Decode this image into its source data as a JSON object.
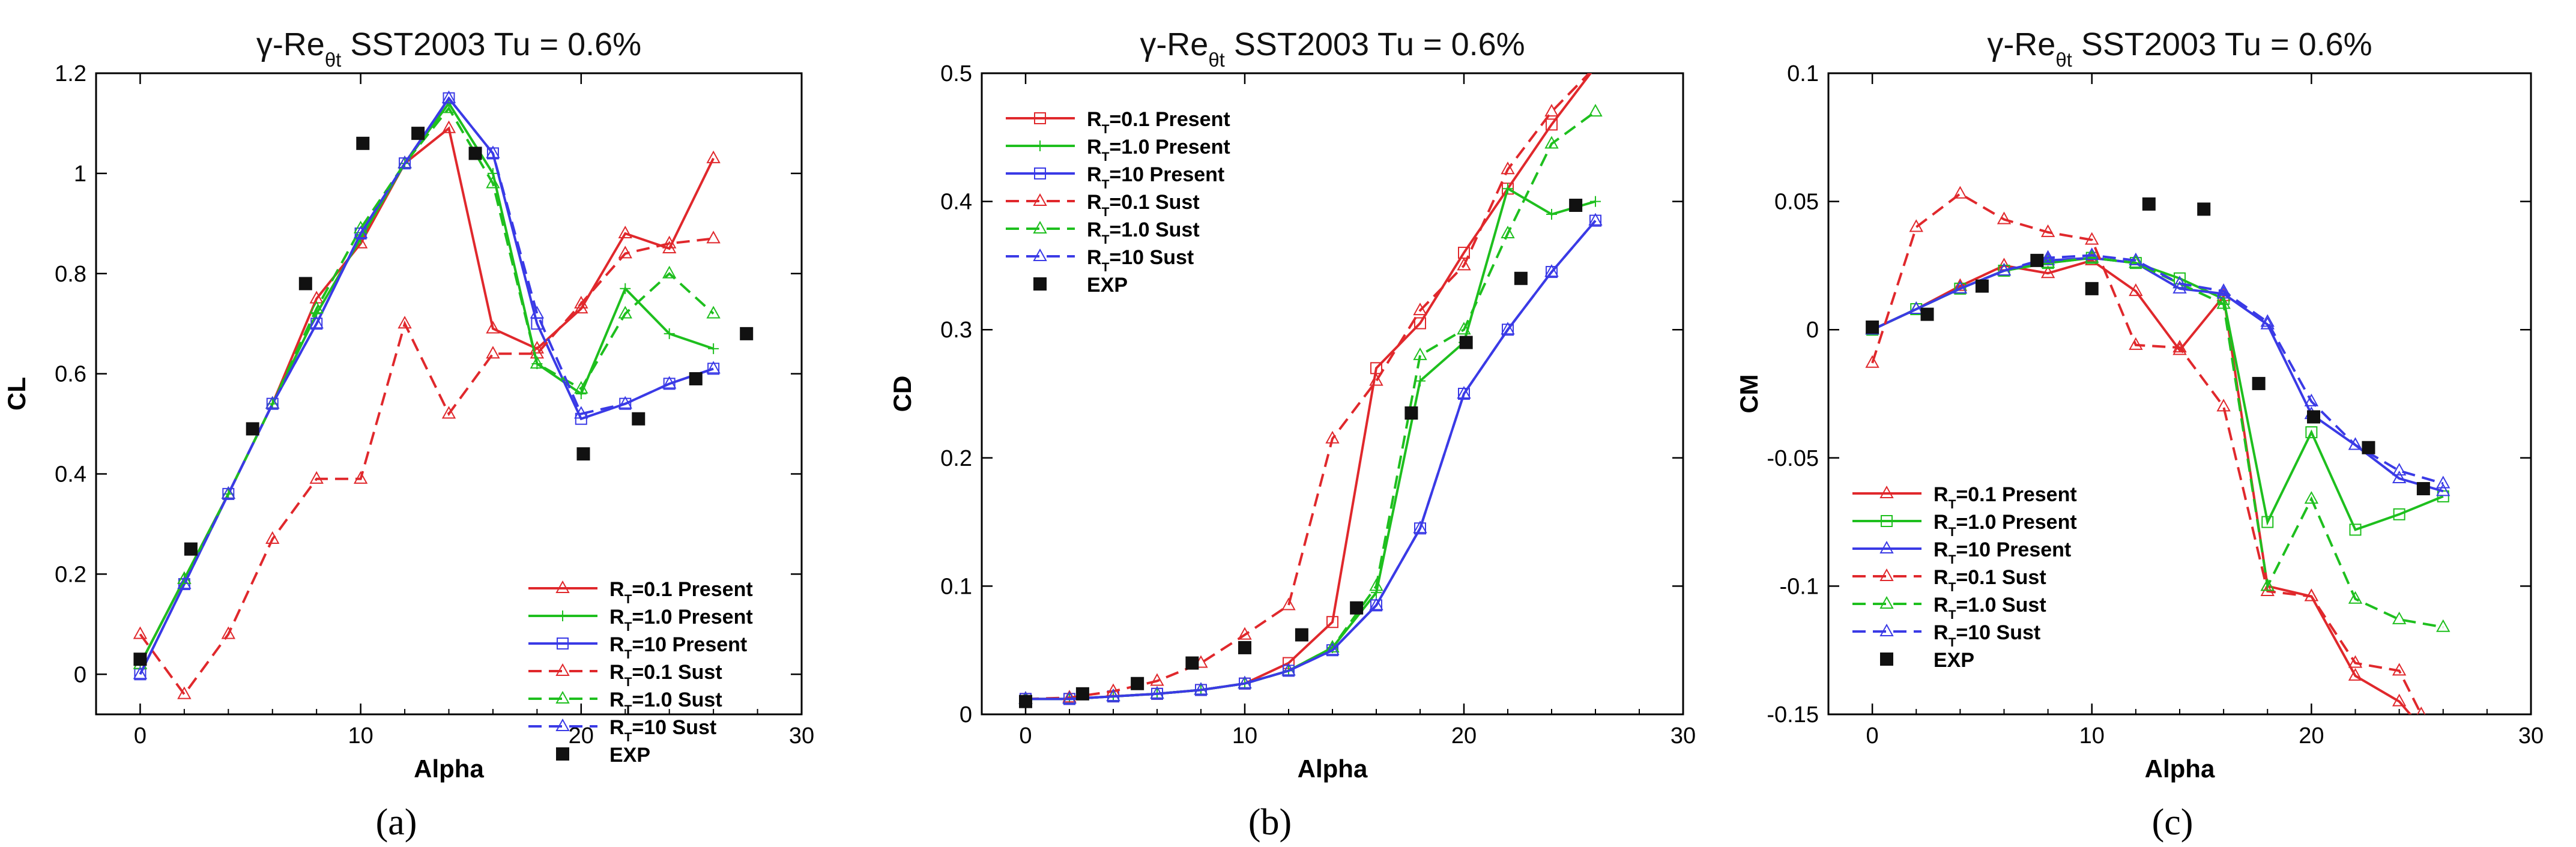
{
  "figure": {
    "captions": [
      "(a)",
      "(b)",
      "(c)"
    ]
  },
  "colors": {
    "red": "#e0282c",
    "green": "#1ebf1e",
    "blue": "#3a3ae6",
    "exp": "#111111"
  },
  "chart_data": [
    {
      "type": "line",
      "title": "γ-Re_θt SST2003   Tu = 0.6%",
      "xlabel": "Alpha",
      "ylabel": "CL",
      "xlim": [
        -2,
        30
      ],
      "ylim": [
        -0.08,
        1.2
      ],
      "xticks": [
        0,
        10,
        20,
        30
      ],
      "yticks": [
        0,
        0.2,
        0.4,
        0.6,
        0.8,
        1,
        1.2
      ],
      "ytick_labels": [
        "0",
        "0.2",
        "0.4",
        "0.6",
        "0.8",
        "1",
        "1.2"
      ],
      "legend_position": "bottom-right",
      "series": [
        {
          "name": "R_T=0.1 Present",
          "color": "#e0282c",
          "dash": "solid",
          "marker": "tri",
          "x": [
            0,
            2,
            4,
            6,
            8,
            10,
            12,
            14,
            16,
            18,
            20,
            22,
            24,
            26
          ],
          "y": [
            0.02,
            0.19,
            0.36,
            0.54,
            0.75,
            0.86,
            1.02,
            1.09,
            0.69,
            0.65,
            0.73,
            0.88,
            0.85,
            1.03
          ]
        },
        {
          "name": "R_T=1.0 Present",
          "color": "#1ebf1e",
          "dash": "solid",
          "marker": "plus",
          "x": [
            0,
            2,
            4,
            6,
            8,
            10,
            12,
            14,
            16,
            18,
            20,
            22,
            24,
            26
          ],
          "y": [
            0.02,
            0.19,
            0.36,
            0.54,
            0.72,
            0.87,
            1.02,
            1.14,
            1.0,
            0.62,
            0.56,
            0.77,
            0.68,
            0.65
          ]
        },
        {
          "name": "R_T=10 Present",
          "color": "#3a3ae6",
          "dash": "solid",
          "marker": "sq",
          "x": [
            0,
            2,
            4,
            6,
            8,
            10,
            12,
            14,
            16,
            18,
            20,
            22,
            24,
            26
          ],
          "y": [
            0.0,
            0.18,
            0.36,
            0.54,
            0.7,
            0.88,
            1.02,
            1.15,
            1.04,
            0.7,
            0.51,
            0.54,
            0.58,
            0.61
          ]
        },
        {
          "name": "R_T=0.1 Sust",
          "color": "#e0282c",
          "dash": "dashed",
          "marker": "tri",
          "x": [
            0,
            2,
            4,
            6,
            8,
            10,
            12,
            14,
            16,
            18,
            20,
            22,
            24,
            26
          ],
          "y": [
            0.08,
            -0.04,
            0.08,
            0.27,
            0.39,
            0.39,
            0.7,
            0.52,
            0.64,
            0.64,
            0.74,
            0.84,
            0.86,
            0.87
          ]
        },
        {
          "name": "R_T=1.0 Sust",
          "color": "#1ebf1e",
          "dash": "dashed",
          "marker": "tri",
          "x": [
            0,
            2,
            4,
            6,
            8,
            10,
            12,
            14,
            16,
            18,
            20,
            22,
            24,
            26
          ],
          "y": [
            0.02,
            0.19,
            0.36,
            0.54,
            0.73,
            0.89,
            1.02,
            1.13,
            0.98,
            0.62,
            0.57,
            0.72,
            0.8,
            0.72
          ]
        },
        {
          "name": "R_T=10 Sust",
          "color": "#3a3ae6",
          "dash": "dashed",
          "marker": "tri",
          "x": [
            0,
            2,
            4,
            6,
            8,
            10,
            12,
            14,
            16,
            18,
            20,
            22,
            24,
            26
          ],
          "y": [
            0.0,
            0.18,
            0.36,
            0.54,
            0.7,
            0.88,
            1.02,
            1.15,
            1.04,
            0.72,
            0.52,
            0.54,
            0.58,
            0.61
          ]
        },
        {
          "name": "EXP",
          "color": "#111111",
          "dash": "none",
          "marker": "filled-sq",
          "x": [
            0,
            2.3,
            5.1,
            7.5,
            10.1,
            12.6,
            15.2,
            20.1,
            22.6,
            25.2,
            27.5
          ],
          "y": [
            0.03,
            0.25,
            0.49,
            0.78,
            1.06,
            1.08,
            1.04,
            0.44,
            0.51,
            0.59,
            0.68
          ]
        }
      ]
    },
    {
      "type": "line",
      "title": "γ-Re_θt SST2003   Tu = 0.6%",
      "xlabel": "Alpha",
      "ylabel": "CD",
      "xlim": [
        -2,
        30
      ],
      "ylim": [
        0,
        0.5
      ],
      "xticks": [
        0,
        10,
        20,
        30
      ],
      "yticks": [
        0,
        0.1,
        0.2,
        0.3,
        0.4,
        0.5
      ],
      "ytick_labels": [
        "0",
        "0.1",
        "0.2",
        "0.3",
        "0.4",
        "0.5"
      ],
      "legend_position": "top-left",
      "series": [
        {
          "name": "R_T=0.1 Present",
          "color": "#e0282c",
          "dash": "solid",
          "marker": "sq",
          "x": [
            0,
            2,
            4,
            6,
            8,
            10,
            12,
            14,
            16,
            18,
            20,
            22,
            24,
            26
          ],
          "y": [
            0.012,
            0.012,
            0.014,
            0.016,
            0.019,
            0.024,
            0.04,
            0.072,
            0.27,
            0.305,
            0.36,
            0.41,
            0.46,
            0.505
          ]
        },
        {
          "name": "R_T=1.0 Present",
          "color": "#1ebf1e",
          "dash": "solid",
          "marker": "plus",
          "x": [
            0,
            2,
            4,
            6,
            8,
            10,
            12,
            14,
            16,
            18,
            20,
            22,
            24,
            26
          ],
          "y": [
            0.012,
            0.012,
            0.014,
            0.016,
            0.019,
            0.024,
            0.034,
            0.052,
            0.095,
            0.26,
            0.29,
            0.41,
            0.39,
            0.4
          ]
        },
        {
          "name": "R_T=10 Present",
          "color": "#3a3ae6",
          "dash": "solid",
          "marker": "sq",
          "x": [
            0,
            2,
            4,
            6,
            8,
            10,
            12,
            14,
            16,
            18,
            20,
            22,
            24,
            26
          ],
          "y": [
            0.012,
            0.012,
            0.014,
            0.016,
            0.019,
            0.024,
            0.034,
            0.05,
            0.085,
            0.145,
            0.25,
            0.3,
            0.345,
            0.385
          ]
        },
        {
          "name": "R_T=0.1 Sust",
          "color": "#e0282c",
          "dash": "dashed",
          "marker": "tri",
          "x": [
            0,
            2,
            4,
            6,
            8,
            10,
            12,
            14,
            16,
            18,
            20,
            22,
            24,
            26
          ],
          "y": [
            0.012,
            0.013,
            0.018,
            0.026,
            0.04,
            0.062,
            0.085,
            0.215,
            0.26,
            0.315,
            0.35,
            0.425,
            0.47,
            0.505
          ]
        },
        {
          "name": "R_T=1.0 Sust",
          "color": "#1ebf1e",
          "dash": "dashed",
          "marker": "tri",
          "x": [
            0,
            2,
            4,
            6,
            8,
            10,
            12,
            14,
            16,
            18,
            20,
            22,
            24,
            26
          ],
          "y": [
            0.012,
            0.012,
            0.014,
            0.016,
            0.019,
            0.024,
            0.034,
            0.052,
            0.1,
            0.28,
            0.3,
            0.375,
            0.445,
            0.47
          ]
        },
        {
          "name": "R_T=10 Sust",
          "color": "#3a3ae6",
          "dash": "dashed",
          "marker": "tri",
          "x": [
            0,
            2,
            4,
            6,
            8,
            10,
            12,
            14,
            16,
            18,
            20,
            22,
            24,
            26
          ],
          "y": [
            0.012,
            0.012,
            0.014,
            0.016,
            0.019,
            0.024,
            0.034,
            0.05,
            0.085,
            0.145,
            0.25,
            0.3,
            0.345,
            0.385
          ]
        },
        {
          "name": "EXP",
          "color": "#111111",
          "dash": "none",
          "marker": "filled-sq",
          "x": [
            0,
            2.6,
            5.1,
            7.6,
            10.0,
            12.6,
            15.1,
            17.6,
            20.1,
            22.6,
            25.1
          ],
          "y": [
            0.01,
            0.016,
            0.024,
            0.04,
            0.052,
            0.062,
            0.083,
            0.235,
            0.29,
            0.34,
            0.397
          ]
        }
      ]
    },
    {
      "type": "line",
      "title": "γ-Re_θt SST2003   Tu = 0.6%",
      "xlabel": "Alpha",
      "ylabel": "CM",
      "xlim": [
        -2,
        30
      ],
      "ylim": [
        -0.15,
        0.1
      ],
      "xticks": [
        0,
        10,
        20,
        30
      ],
      "yticks": [
        -0.15,
        -0.1,
        -0.05,
        0,
        0.05,
        0.1
      ],
      "ytick_labels": [
        "-0.15",
        "-0.1",
        "-0.05",
        "0",
        "0.05",
        "0.1"
      ],
      "legend_position": "bottom-left",
      "series": [
        {
          "name": "R_T=0.1 Present",
          "color": "#e0282c",
          "dash": "solid",
          "marker": "tri",
          "x": [
            0,
            2,
            4,
            6,
            8,
            10,
            12,
            14,
            16,
            18,
            20,
            22,
            24,
            25
          ],
          "y": [
            0.0,
            0.008,
            0.017,
            0.025,
            0.022,
            0.027,
            0.015,
            -0.008,
            0.013,
            -0.1,
            -0.104,
            -0.135,
            -0.145,
            -0.155
          ]
        },
        {
          "name": "R_T=1.0 Present",
          "color": "#1ebf1e",
          "dash": "solid",
          "marker": "sq",
          "x": [
            0,
            2,
            4,
            6,
            8,
            10,
            12,
            14,
            16,
            18,
            20,
            22,
            24,
            26
          ],
          "y": [
            0.0,
            0.008,
            0.016,
            0.023,
            0.026,
            0.028,
            0.026,
            0.02,
            0.012,
            -0.075,
            -0.04,
            -0.078,
            -0.072,
            -0.065
          ]
        },
        {
          "name": "R_T=10 Present",
          "color": "#3a3ae6",
          "dash": "solid",
          "marker": "tri",
          "x": [
            0,
            2,
            4,
            6,
            8,
            10,
            12,
            14,
            16,
            18,
            20,
            22,
            24,
            26
          ],
          "y": [
            0.0,
            0.008,
            0.016,
            0.023,
            0.027,
            0.028,
            0.026,
            0.016,
            0.014,
            0.002,
            -0.033,
            -0.045,
            -0.058,
            -0.063
          ]
        },
        {
          "name": "R_T=0.1 Sust",
          "color": "#e0282c",
          "dash": "dashed",
          "marker": "tri",
          "x": [
            0,
            2,
            4,
            6,
            8,
            10,
            12,
            14,
            16,
            18,
            20,
            22,
            24,
            25
          ],
          "y": [
            -0.013,
            0.04,
            0.053,
            0.043,
            0.038,
            0.035,
            -0.006,
            -0.007,
            -0.03,
            -0.102,
            -0.104,
            -0.13,
            -0.133,
            -0.15
          ]
        },
        {
          "name": "R_T=1.0 Sust",
          "color": "#1ebf1e",
          "dash": "dashed",
          "marker": "tri",
          "x": [
            0,
            2,
            4,
            6,
            8,
            10,
            12,
            14,
            16,
            18,
            20,
            22,
            24,
            26
          ],
          "y": [
            0.0,
            0.008,
            0.016,
            0.023,
            0.026,
            0.028,
            0.026,
            0.018,
            0.01,
            -0.1,
            -0.066,
            -0.105,
            -0.113,
            -0.116
          ]
        },
        {
          "name": "R_T=10 Sust",
          "color": "#3a3ae6",
          "dash": "dashed",
          "marker": "tri",
          "x": [
            0,
            2,
            4,
            6,
            8,
            10,
            12,
            14,
            16,
            18,
            20,
            22,
            24,
            26
          ],
          "y": [
            0.0,
            0.008,
            0.016,
            0.023,
            0.028,
            0.029,
            0.027,
            0.018,
            0.015,
            0.003,
            -0.028,
            -0.045,
            -0.055,
            -0.06
          ]
        },
        {
          "name": "EXP",
          "color": "#111111",
          "dash": "none",
          "marker": "filled-sq",
          "x": [
            0,
            2.5,
            5.0,
            7.5,
            10.0,
            12.6,
            15.1,
            17.6,
            20.1,
            22.6,
            25.1
          ],
          "y": [
            0.001,
            0.006,
            0.017,
            0.027,
            0.016,
            0.049,
            0.047,
            -0.021,
            -0.034,
            -0.046,
            -0.062
          ]
        }
      ]
    }
  ]
}
